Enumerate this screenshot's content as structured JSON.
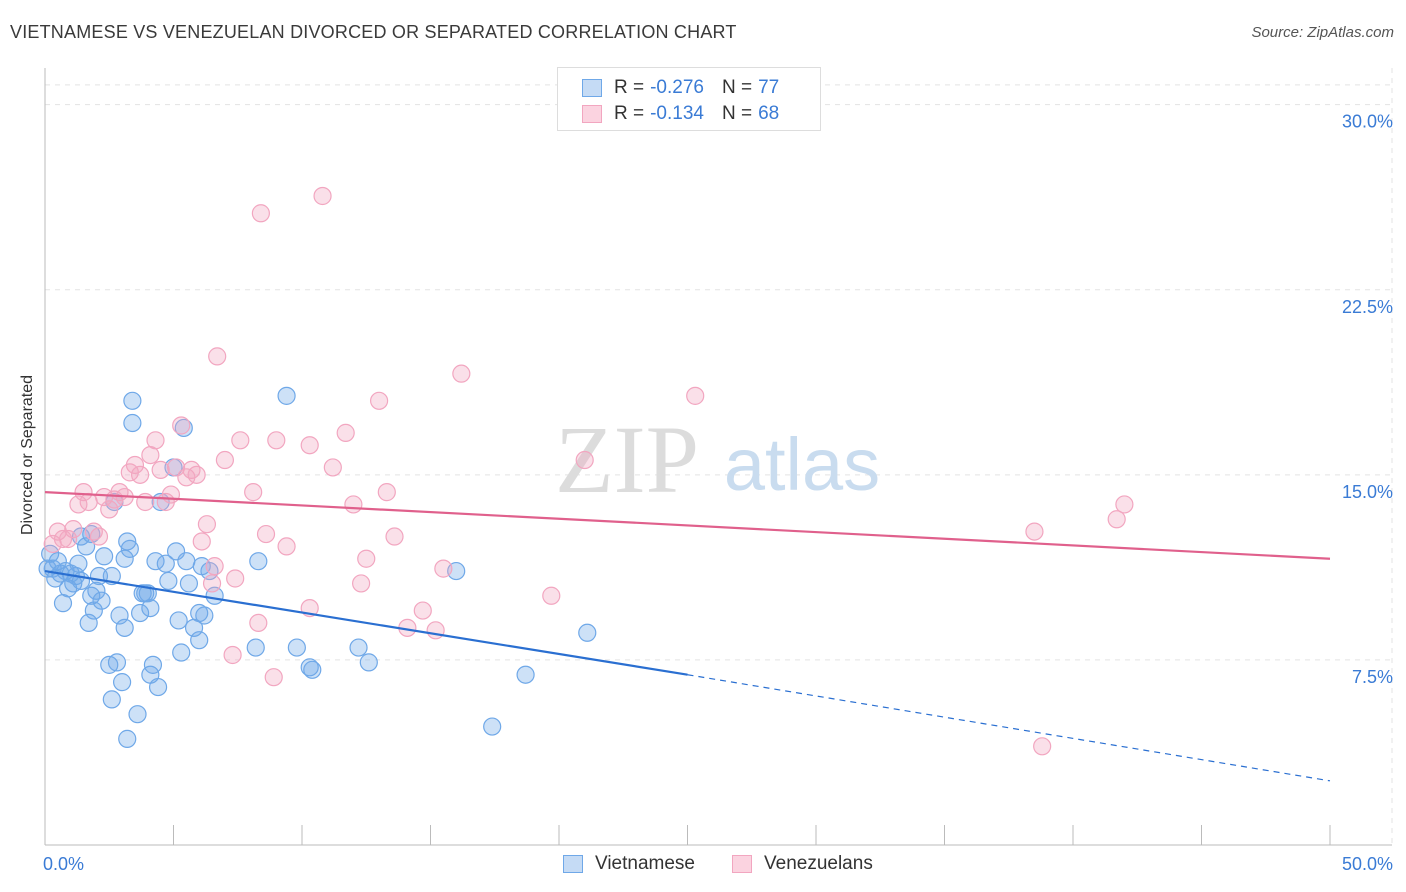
{
  "title": "VIETNAMESE VS VENEZUELAN DIVORCED OR SEPARATED CORRELATION CHART",
  "source": "Source: ZipAtlas.com",
  "watermark": {
    "zip": "ZIP",
    "atlas": "atlas"
  },
  "legend": {
    "r_label": "R =",
    "n_label": "N =",
    "rows": [
      {
        "r": "-0.276",
        "n": "77",
        "color": "#6fa8e8"
      },
      {
        "r": "-0.134",
        "n": "68",
        "color": "#f2a6c0"
      }
    ]
  },
  "bottom_legend": {
    "vietnamese": "Vietnamese",
    "venezuelans": "Venezuelans"
  },
  "colors": {
    "blue": "#6fa8e8",
    "blue_line": "#2a6fd1",
    "pink": "#f2a6c0",
    "pink_line": "#e0608c",
    "accent_text": "#3a7bd5"
  },
  "chart_data": {
    "type": "scatter",
    "title": "VIETNAMESE VS VENEZUELAN DIVORCED OR SEPARATED CORRELATION CHART",
    "xlabel": "",
    "ylabel": "Divorced or Separated",
    "xlim": [
      0,
      50
    ],
    "ylim": [
      0,
      31
    ],
    "x_tick_labels": [
      "0.0%",
      "50.0%"
    ],
    "y_ticks": [
      7.5,
      15.0,
      22.5,
      30.0
    ],
    "y_tick_labels": [
      "7.5%",
      "15.0%",
      "22.5%",
      "30.0%"
    ],
    "grid": true,
    "series": [
      {
        "name": "Vietnamese",
        "color": "#6fa8e8",
        "trend": {
          "x": [
            0,
            25
          ],
          "y": [
            11.1,
            6.9
          ],
          "dashed_extension_to": [
            50,
            2.6
          ]
        },
        "points": [
          [
            0.2,
            11.8
          ],
          [
            0.3,
            11.2
          ],
          [
            0.4,
            10.8
          ],
          [
            0.5,
            11.5
          ],
          [
            0.6,
            11.0
          ],
          [
            0.7,
            9.8
          ],
          [
            0.8,
            11.1
          ],
          [
            0.9,
            10.4
          ],
          [
            1.0,
            11.0
          ],
          [
            1.1,
            10.6
          ],
          [
            1.2,
            10.9
          ],
          [
            1.3,
            11.4
          ],
          [
            1.4,
            10.7
          ],
          [
            1.6,
            12.1
          ],
          [
            1.7,
            9.0
          ],
          [
            1.8,
            10.1
          ],
          [
            1.9,
            9.5
          ],
          [
            2.0,
            10.3
          ],
          [
            2.1,
            10.9
          ],
          [
            2.2,
            9.9
          ],
          [
            2.3,
            11.7
          ],
          [
            2.5,
            7.3
          ],
          [
            2.6,
            5.9
          ],
          [
            2.7,
            13.9
          ],
          [
            2.8,
            7.4
          ],
          [
            2.9,
            9.3
          ],
          [
            3.0,
            6.6
          ],
          [
            3.1,
            11.6
          ],
          [
            3.2,
            12.3
          ],
          [
            3.3,
            12.0
          ],
          [
            3.4,
            17.1
          ],
          [
            3.6,
            5.3
          ],
          [
            3.7,
            9.4
          ],
          [
            3.8,
            10.2
          ],
          [
            3.9,
            10.2
          ],
          [
            4.0,
            10.2
          ],
          [
            4.1,
            9.6
          ],
          [
            4.2,
            7.3
          ],
          [
            4.3,
            11.5
          ],
          [
            4.4,
            6.4
          ],
          [
            4.5,
            13.9
          ],
          [
            4.7,
            11.4
          ],
          [
            4.8,
            10.7
          ],
          [
            5.0,
            15.3
          ],
          [
            5.1,
            11.9
          ],
          [
            5.2,
            9.1
          ],
          [
            5.4,
            16.9
          ],
          [
            5.5,
            11.5
          ],
          [
            5.6,
            10.6
          ],
          [
            5.8,
            8.8
          ],
          [
            6.0,
            8.3
          ],
          [
            6.1,
            11.3
          ],
          [
            6.2,
            9.3
          ],
          [
            6.4,
            11.1
          ],
          [
            6.6,
            10.1
          ],
          [
            8.2,
            8.0
          ],
          [
            8.3,
            11.5
          ],
          [
            9.4,
            18.2
          ],
          [
            9.8,
            8.0
          ],
          [
            10.3,
            7.2
          ],
          [
            10.4,
            7.1
          ],
          [
            12.2,
            8.0
          ],
          [
            12.6,
            7.4
          ],
          [
            16.0,
            11.1
          ],
          [
            17.4,
            4.8
          ],
          [
            18.7,
            6.9
          ],
          [
            21.1,
            8.6
          ],
          [
            3.4,
            18.0
          ],
          [
            3.2,
            4.3
          ],
          [
            4.1,
            6.9
          ],
          [
            1.8,
            12.6
          ],
          [
            0.1,
            11.2
          ],
          [
            2.6,
            10.9
          ],
          [
            5.3,
            7.8
          ],
          [
            3.1,
            8.8
          ],
          [
            1.4,
            12.5
          ],
          [
            6.0,
            9.4
          ]
        ]
      },
      {
        "name": "Venezuelans",
        "color": "#f2a6c0",
        "trend": {
          "x": [
            0,
            50
          ],
          "y": [
            14.3,
            11.6
          ]
        },
        "points": [
          [
            0.3,
            12.2
          ],
          [
            0.5,
            12.7
          ],
          [
            0.7,
            12.4
          ],
          [
            0.9,
            12.4
          ],
          [
            1.1,
            12.8
          ],
          [
            1.3,
            13.8
          ],
          [
            1.5,
            14.3
          ],
          [
            1.7,
            13.9
          ],
          [
            1.9,
            12.7
          ],
          [
            2.1,
            12.5
          ],
          [
            2.3,
            14.1
          ],
          [
            2.5,
            13.6
          ],
          [
            2.7,
            14.0
          ],
          [
            2.9,
            14.3
          ],
          [
            3.1,
            14.1
          ],
          [
            3.3,
            15.1
          ],
          [
            3.5,
            15.4
          ],
          [
            3.7,
            15.0
          ],
          [
            3.9,
            13.9
          ],
          [
            4.1,
            15.8
          ],
          [
            4.3,
            16.4
          ],
          [
            4.5,
            15.2
          ],
          [
            4.7,
            13.9
          ],
          [
            4.9,
            14.2
          ],
          [
            5.1,
            15.3
          ],
          [
            5.3,
            17.0
          ],
          [
            5.5,
            14.9
          ],
          [
            5.7,
            15.2
          ],
          [
            5.9,
            15.0
          ],
          [
            6.1,
            12.3
          ],
          [
            6.3,
            13.0
          ],
          [
            6.5,
            10.6
          ],
          [
            6.7,
            19.8
          ],
          [
            7.0,
            15.6
          ],
          [
            7.3,
            7.7
          ],
          [
            7.4,
            10.8
          ],
          [
            7.6,
            16.4
          ],
          [
            8.1,
            14.3
          ],
          [
            8.3,
            9.0
          ],
          [
            8.6,
            12.6
          ],
          [
            8.9,
            6.8
          ],
          [
            9.0,
            16.4
          ],
          [
            9.4,
            12.1
          ],
          [
            10.3,
            16.2
          ],
          [
            10.3,
            9.6
          ],
          [
            10.8,
            26.3
          ],
          [
            11.2,
            15.3
          ],
          [
            11.7,
            16.7
          ],
          [
            12.0,
            13.8
          ],
          [
            12.3,
            10.6
          ],
          [
            12.5,
            11.6
          ],
          [
            13.0,
            18.0
          ],
          [
            13.3,
            14.3
          ],
          [
            13.6,
            12.5
          ],
          [
            14.1,
            8.8
          ],
          [
            14.7,
            9.5
          ],
          [
            15.2,
            8.7
          ],
          [
            15.5,
            11.2
          ],
          [
            16.2,
            19.1
          ],
          [
            19.7,
            10.1
          ],
          [
            21.0,
            15.6
          ],
          [
            25.3,
            18.2
          ],
          [
            38.5,
            12.7
          ],
          [
            38.8,
            4.0
          ],
          [
            41.7,
            13.2
          ],
          [
            42.0,
            13.8
          ],
          [
            8.4,
            25.6
          ],
          [
            6.6,
            11.3
          ]
        ]
      }
    ]
  }
}
